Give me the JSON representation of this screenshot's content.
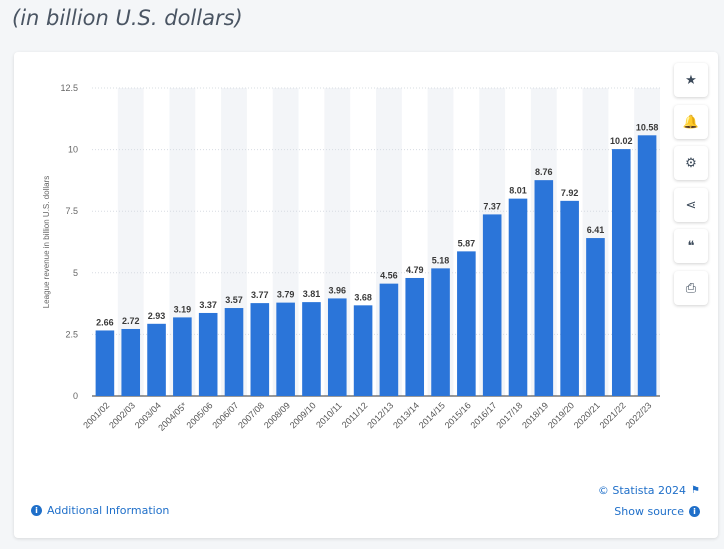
{
  "subtitle": "(in billion U.S. dollars)",
  "toolbar": [
    {
      "name": "favorite-icon",
      "glyph": "★"
    },
    {
      "name": "bell-icon",
      "glyph": "🔔"
    },
    {
      "name": "gear-icon",
      "glyph": "⚙"
    },
    {
      "name": "share-icon",
      "glyph": "⋖"
    },
    {
      "name": "quote-icon",
      "glyph": "❝"
    },
    {
      "name": "print-icon",
      "glyph": "⎙"
    }
  ],
  "footer": {
    "additional_info": "Additional Information",
    "copyright": "© Statista 2024",
    "show_source": "Show source"
  },
  "chart_data": {
    "type": "bar",
    "ylabel": "League revenue in billion U.S. dollars",
    "ylim": [
      0,
      12.5
    ],
    "yticks": [
      0,
      2.5,
      5,
      7.5,
      10,
      12.5
    ],
    "ytick_labels": [
      "0",
      "2.5",
      "5",
      "7.5",
      "10",
      "12.5"
    ],
    "categories": [
      "2001/02",
      "2002/03",
      "2003/04",
      "2004/05*",
      "2005/06",
      "2006/07",
      "2007/08",
      "2008/09",
      "2009/10",
      "2010/11",
      "2011/12",
      "2012/13",
      "2013/14",
      "2014/15",
      "2015/16",
      "2016/17",
      "2017/18",
      "2018/19",
      "2019/20",
      "2020/21",
      "2021/22",
      "2022/23"
    ],
    "values": [
      2.66,
      2.72,
      2.93,
      3.19,
      3.37,
      3.57,
      3.77,
      3.79,
      3.81,
      3.96,
      3.68,
      4.56,
      4.79,
      5.18,
      5.87,
      7.37,
      8.01,
      8.76,
      7.92,
      6.41,
      10.02,
      10.58
    ],
    "value_labels": [
      "2.66",
      "2.72",
      "2.93",
      "3.19",
      "3.37",
      "3.57",
      "3.77",
      "3.79",
      "3.81",
      "3.96",
      "3.68",
      "4.56",
      "4.79",
      "5.18",
      "5.87",
      "7.37",
      "8.01",
      "8.76",
      "7.92",
      "6.41",
      "10.02",
      "10.58"
    ],
    "bar_color": "#2b75d9",
    "grid": true
  }
}
